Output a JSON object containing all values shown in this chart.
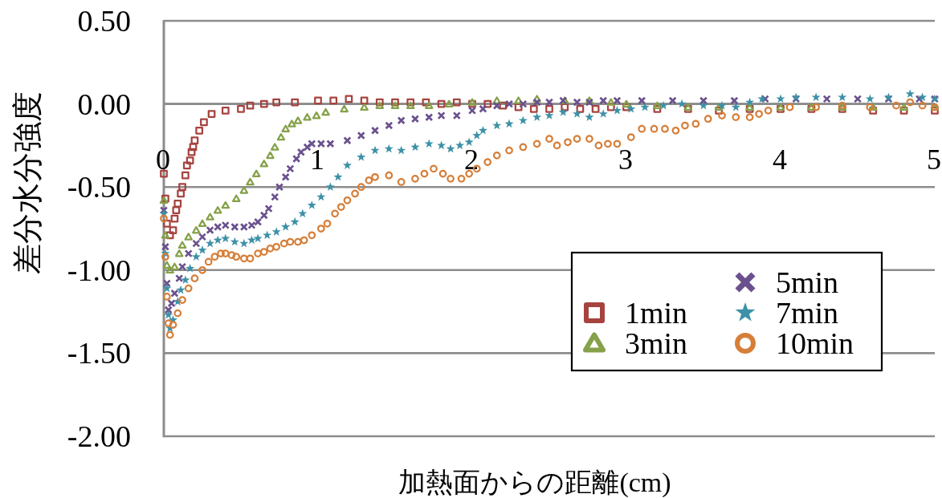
{
  "chart_data": {
    "type": "scatter",
    "xlabel": "加熱面からの距離(cm)",
    "ylabel": "差分水分強度",
    "xlim": [
      0,
      5
    ],
    "ylim": [
      -2,
      0.5
    ],
    "xticks": [
      0,
      1,
      2,
      3,
      4,
      5
    ],
    "yticks": [
      {
        "value": 0.5,
        "label": "0.50"
      },
      {
        "value": 0,
        "label": "0.00"
      },
      {
        "value": -0.5,
        "label": "-0.50"
      },
      {
        "value": -1,
        "label": "-1.00"
      },
      {
        "value": -1.5,
        "label": "-1.50"
      },
      {
        "value": -2,
        "label": "-2.00"
      }
    ],
    "grid": "y",
    "legend": "bottom right",
    "series": [
      {
        "name": "1min",
        "color": "#a6433f",
        "marker": "square",
        "x": [
          0,
          0.01,
          0.02,
          0.04,
          0.06,
          0.07,
          0.08,
          0.09,
          0.11,
          0.12,
          0.14,
          0.15,
          0.17,
          0.18,
          0.19,
          0.2,
          0.23,
          0.26,
          0.31,
          0.4,
          0.5,
          0.56,
          0.65,
          0.73,
          0.85,
          1.0,
          1.1,
          1.2,
          1.3,
          1.4,
          1.5,
          1.6,
          1.7,
          1.8,
          1.9,
          2.0,
          2.1,
          2.2,
          2.3,
          2.4,
          2.5,
          2.6,
          2.7,
          2.8,
          2.9,
          3.0,
          3.2,
          3.4,
          3.6,
          3.8,
          4.0,
          4.2,
          4.4,
          4.6,
          4.8,
          5.0
        ],
        "values": [
          -0.42,
          -0.57,
          -0.72,
          -0.79,
          -0.76,
          -0.69,
          -0.64,
          -0.6,
          -0.54,
          -0.5,
          -0.43,
          -0.37,
          -0.34,
          -0.29,
          -0.26,
          -0.22,
          -0.16,
          -0.11,
          -0.06,
          -0.04,
          -0.03,
          -0.01,
          0.0,
          0.01,
          0.01,
          0.02,
          0.02,
          0.03,
          0.02,
          0.01,
          0.01,
          0.01,
          0.01,
          0.0,
          0.01,
          0.0,
          0.0,
          -0.01,
          -0.02,
          -0.03,
          -0.03,
          -0.02,
          -0.03,
          -0.03,
          -0.02,
          -0.02,
          -0.03,
          -0.03,
          -0.04,
          -0.03,
          -0.03,
          -0.03,
          -0.03,
          -0.04,
          -0.04,
          -0.04
        ]
      },
      {
        "name": "3min",
        "color": "#85a149",
        "marker": "triangle",
        "x": [
          0,
          0.01,
          0.02,
          0.04,
          0.07,
          0.1,
          0.12,
          0.16,
          0.21,
          0.25,
          0.3,
          0.35,
          0.4,
          0.47,
          0.52,
          0.56,
          0.6,
          0.65,
          0.69,
          0.72,
          0.76,
          0.79,
          0.83,
          0.87,
          0.93,
          0.99,
          1.05,
          1.17,
          1.3,
          1.4,
          1.5,
          1.6,
          1.72,
          1.85,
          2.0,
          2.16,
          2.3,
          2.42,
          2.6,
          2.76,
          2.9,
          3.0,
          3.2,
          3.4,
          3.6,
          3.8,
          4.0,
          4.2,
          4.4,
          4.6,
          4.8,
          5.0
        ],
        "values": [
          -0.58,
          -0.79,
          -0.97,
          -1.0,
          -0.98,
          -0.9,
          -0.85,
          -0.8,
          -0.76,
          -0.72,
          -0.68,
          -0.64,
          -0.61,
          -0.57,
          -0.52,
          -0.47,
          -0.42,
          -0.36,
          -0.31,
          -0.26,
          -0.2,
          -0.15,
          -0.12,
          -0.1,
          -0.08,
          -0.07,
          -0.05,
          -0.03,
          -0.02,
          -0.01,
          -0.01,
          -0.01,
          -0.01,
          0.0,
          0.01,
          0.02,
          0.02,
          0.03,
          0.02,
          0.02,
          0.01,
          0.0,
          -0.01,
          -0.02,
          -0.02,
          -0.02,
          -0.02,
          -0.02,
          -0.02,
          -0.02,
          -0.02,
          -0.02
        ]
      },
      {
        "name": "5min",
        "color": "#6a518e",
        "marker": "cross",
        "x": [
          0,
          0.01,
          0.02,
          0.03,
          0.05,
          0.07,
          0.1,
          0.12,
          0.16,
          0.21,
          0.25,
          0.3,
          0.35,
          0.4,
          0.46,
          0.52,
          0.57,
          0.61,
          0.65,
          0.68,
          0.72,
          0.75,
          0.79,
          0.82,
          0.86,
          0.89,
          0.93,
          0.96,
          1.02,
          1.08,
          1.19,
          1.28,
          1.37,
          1.46,
          1.54,
          1.63,
          1.72,
          1.8,
          1.9,
          2.0,
          2.07,
          2.16,
          2.24,
          2.33,
          2.42,
          2.5,
          2.59,
          2.68,
          2.76,
          2.85,
          2.94,
          3.1,
          3.3,
          3.5,
          3.7,
          3.9,
          4.1,
          4.3,
          4.5,
          4.7,
          4.9,
          5.0
        ],
        "values": [
          -0.64,
          -0.86,
          -1.08,
          -1.24,
          -1.2,
          -1.14,
          -1.05,
          -0.98,
          -0.9,
          -0.84,
          -0.8,
          -0.76,
          -0.74,
          -0.73,
          -0.74,
          -0.74,
          -0.73,
          -0.71,
          -0.67,
          -0.63,
          -0.56,
          -0.5,
          -0.44,
          -0.39,
          -0.33,
          -0.29,
          -0.26,
          -0.24,
          -0.24,
          -0.24,
          -0.22,
          -0.19,
          -0.16,
          -0.13,
          -0.1,
          -0.09,
          -0.08,
          -0.07,
          -0.07,
          -0.04,
          -0.03,
          -0.01,
          0.0,
          0.0,
          0.01,
          0.01,
          0.02,
          0.01,
          0.01,
          0.02,
          0.02,
          0.02,
          0.02,
          0.02,
          0.02,
          0.03,
          0.03,
          0.03,
          0.03,
          0.03,
          0.03,
          0.03
        ]
      },
      {
        "name": "7min",
        "color": "#3d91a7",
        "marker": "star",
        "x": [
          0,
          0.01,
          0.02,
          0.03,
          0.04,
          0.06,
          0.09,
          0.11,
          0.14,
          0.17,
          0.21,
          0.25,
          0.3,
          0.35,
          0.4,
          0.46,
          0.52,
          0.57,
          0.61,
          0.67,
          0.73,
          0.79,
          0.85,
          0.9,
          0.96,
          1.02,
          1.08,
          1.13,
          1.19,
          1.28,
          1.37,
          1.46,
          1.54,
          1.63,
          1.72,
          1.8,
          1.86,
          1.92,
          1.98,
          2.03,
          2.07,
          2.16,
          2.24,
          2.33,
          2.42,
          2.5,
          2.59,
          2.68,
          2.76,
          2.85,
          2.94,
          3.03,
          3.12,
          3.24,
          3.36,
          3.5,
          3.62,
          3.71,
          3.8,
          3.88,
          4.0,
          4.1,
          4.23,
          4.4,
          4.58,
          4.7,
          4.84,
          4.92,
          5.0
        ],
        "values": [
          -0.66,
          -0.9,
          -1.11,
          -1.27,
          -1.35,
          -1.3,
          -1.19,
          -1.12,
          -1.06,
          -0.99,
          -0.92,
          -0.88,
          -0.84,
          -0.82,
          -0.81,
          -0.83,
          -0.84,
          -0.82,
          -0.81,
          -0.79,
          -0.77,
          -0.74,
          -0.71,
          -0.66,
          -0.61,
          -0.56,
          -0.5,
          -0.44,
          -0.37,
          -0.32,
          -0.28,
          -0.27,
          -0.28,
          -0.26,
          -0.24,
          -0.25,
          -0.27,
          -0.25,
          -0.23,
          -0.19,
          -0.16,
          -0.13,
          -0.12,
          -0.1,
          -0.08,
          -0.07,
          -0.05,
          -0.06,
          -0.08,
          -0.06,
          -0.04,
          -0.03,
          -0.02,
          -0.01,
          0.0,
          -0.01,
          -0.01,
          -0.02,
          0.01,
          0.03,
          0.03,
          0.04,
          0.04,
          0.04,
          0.03,
          0.04,
          0.06,
          0.04,
          0.03
        ]
      },
      {
        "name": "10min",
        "color": "#d67e38",
        "marker": "circle",
        "x": [
          0,
          0.01,
          0.02,
          0.03,
          0.04,
          0.06,
          0.09,
          0.12,
          0.16,
          0.2,
          0.25,
          0.29,
          0.33,
          0.37,
          0.4,
          0.44,
          0.47,
          0.52,
          0.56,
          0.61,
          0.65,
          0.69,
          0.73,
          0.78,
          0.82,
          0.87,
          0.91,
          0.96,
          1.02,
          1.06,
          1.11,
          1.15,
          1.19,
          1.24,
          1.28,
          1.33,
          1.37,
          1.46,
          1.54,
          1.63,
          1.69,
          1.75,
          1.81,
          1.86,
          1.93,
          1.98,
          2.03,
          2.1,
          2.16,
          2.24,
          2.33,
          2.42,
          2.5,
          2.55,
          2.62,
          2.68,
          2.76,
          2.82,
          2.88,
          2.94,
          3.03,
          3.1,
          3.18,
          3.25,
          3.32,
          3.38,
          3.45,
          3.53,
          3.62,
          3.71,
          3.8,
          3.86,
          3.92,
          4.06,
          4.23,
          4.4,
          4.58,
          4.75,
          4.84,
          4.92,
          5.0
        ],
        "values": [
          -0.69,
          -0.92,
          -1.16,
          -1.32,
          -1.39,
          -1.33,
          -1.26,
          -1.18,
          -1.11,
          -1.05,
          -1.0,
          -0.95,
          -0.92,
          -0.9,
          -0.9,
          -0.91,
          -0.92,
          -0.93,
          -0.93,
          -0.9,
          -0.89,
          -0.87,
          -0.86,
          -0.84,
          -0.83,
          -0.83,
          -0.82,
          -0.79,
          -0.75,
          -0.72,
          -0.66,
          -0.62,
          -0.58,
          -0.54,
          -0.5,
          -0.46,
          -0.44,
          -0.43,
          -0.47,
          -0.45,
          -0.42,
          -0.39,
          -0.42,
          -0.45,
          -0.45,
          -0.42,
          -0.39,
          -0.35,
          -0.31,
          -0.28,
          -0.26,
          -0.24,
          -0.21,
          -0.25,
          -0.23,
          -0.21,
          -0.21,
          -0.25,
          -0.24,
          -0.24,
          -0.2,
          -0.15,
          -0.15,
          -0.15,
          -0.16,
          -0.13,
          -0.12,
          -0.09,
          -0.07,
          -0.08,
          -0.08,
          -0.06,
          -0.04,
          -0.02,
          -0.02,
          -0.01,
          -0.02,
          -0.01,
          0.01,
          -0.01,
          -0.02
        ]
      }
    ]
  }
}
